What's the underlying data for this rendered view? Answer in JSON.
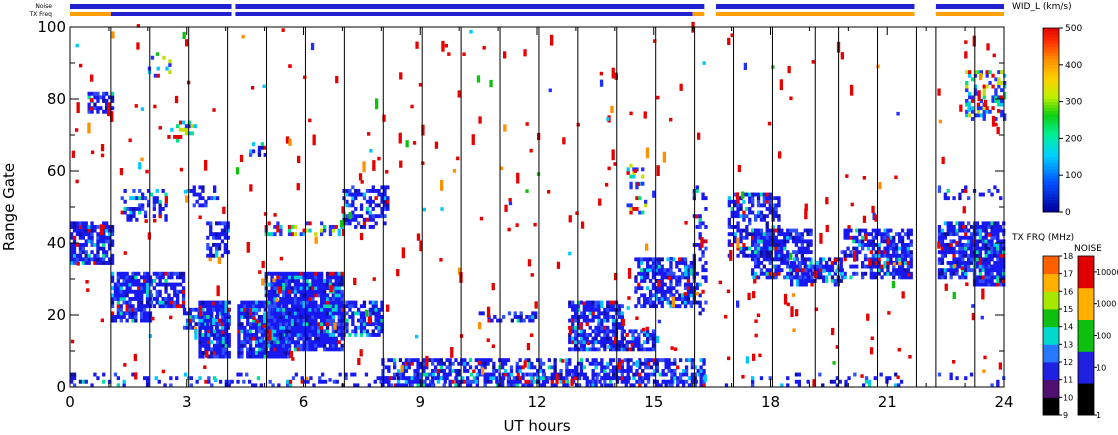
{
  "header": {
    "noise_label": "Noise",
    "txfreq_label": "TX Freq"
  },
  "chart_data": {
    "type": "heatmap",
    "xlabel": "UT hours",
    "ylabel": "Range Gate",
    "xlim": [
      0,
      24
    ],
    "ylim": [
      0,
      100
    ],
    "x_ticks": [
      "0",
      "3",
      "6",
      "9",
      "12",
      "15",
      "18",
      "21",
      "24"
    ],
    "y_ticks": [
      "0",
      "20",
      "40",
      "60",
      "80",
      "100"
    ],
    "scan_boundaries_hours": [
      1.05,
      2.05,
      3.05,
      4.05,
      5.05,
      6.05,
      7.05,
      8.05,
      9.05,
      10.05,
      11.05,
      12.05,
      13.05,
      14.05,
      15.05,
      16.05,
      17.05,
      18.05,
      19.15,
      19.75,
      20.75,
      21.75,
      22.25,
      23.25
    ],
    "data_gaps_hours": [
      [
        4.15,
        4.25
      ],
      [
        16.3,
        16.6
      ],
      [
        21.7,
        22.25
      ]
    ],
    "colorbars": [
      {
        "title": "WID_L (km/s)",
        "ticks": [
          "0",
          "100",
          "200",
          "300",
          "400",
          "500"
        ],
        "range": [
          0,
          500
        ]
      },
      {
        "title": "TX FRQ (MHz)",
        "ticks": [
          "9",
          "10",
          "11",
          "12",
          "13",
          "14",
          "15",
          "16",
          "17",
          "18"
        ],
        "range": [
          9,
          18
        ]
      },
      {
        "title": "NOISE",
        "ticks": [
          "1",
          "10",
          "100",
          "1000",
          "10000"
        ],
        "scale": "log"
      }
    ],
    "top_bars": {
      "noise_color": "#2020d0",
      "txfreq_colors": [
        "#ffa000",
        "#2020d0"
      ],
      "noise_segments_hours": [
        [
          0,
          4.15
        ],
        [
          4.25,
          16.3
        ],
        [
          16.6,
          21.7
        ],
        [
          22.25,
          24
        ]
      ],
      "txfreq_segments": [
        {
          "range": [
            0,
            1.05
          ],
          "color": "#ffa000"
        },
        {
          "range": [
            1.05,
            4.15
          ],
          "color": "#2020d0"
        },
        {
          "range": [
            4.25,
            16.0
          ],
          "color": "#2020d0"
        },
        {
          "range": [
            16.0,
            16.3
          ],
          "color": "#ffa000"
        },
        {
          "range": [
            16.6,
            21.7
          ],
          "color": "#ffa000"
        },
        {
          "range": [
            22.25,
            24
          ],
          "color": "#ffa000"
        }
      ]
    },
    "regions": [
      {
        "x": [
          0.0,
          1.05
        ],
        "y": [
          34,
          46
        ],
        "density": 0.75,
        "palette": "blue"
      },
      {
        "x": [
          0.45,
          1.05
        ],
        "y": [
          76,
          82
        ],
        "density": 0.6,
        "palette": "blue"
      },
      {
        "x": [
          1.05,
          2.05
        ],
        "y": [
          18,
          32
        ],
        "density": 0.8,
        "palette": "blue"
      },
      {
        "x": [
          2.05,
          2.9
        ],
        "y": [
          22,
          32
        ],
        "density": 0.7,
        "palette": "blue"
      },
      {
        "x": [
          1.3,
          2.5
        ],
        "y": [
          46,
          55
        ],
        "density": 0.35,
        "palette": "blue"
      },
      {
        "x": [
          2.0,
          2.6
        ],
        "y": [
          86,
          92
        ],
        "density": 0.3,
        "palette": "mixed"
      },
      {
        "x": [
          2.5,
          3.3
        ],
        "y": [
          68,
          74
        ],
        "density": 0.35,
        "palette": "mixed"
      },
      {
        "x": [
          3.3,
          4.1
        ],
        "y": [
          8,
          24
        ],
        "density": 0.85,
        "palette": "blue"
      },
      {
        "x": [
          2.9,
          4.1
        ],
        "y": [
          16,
          22
        ],
        "density": 0.75,
        "palette": "blue"
      },
      {
        "x": [
          3.5,
          4.1
        ],
        "y": [
          36,
          46
        ],
        "density": 0.55,
        "palette": "blue"
      },
      {
        "x": [
          3.0,
          3.8
        ],
        "y": [
          50,
          56
        ],
        "density": 0.4,
        "palette": "blue"
      },
      {
        "x": [
          4.3,
          5.6
        ],
        "y": [
          8,
          24
        ],
        "density": 0.9,
        "palette": "blue"
      },
      {
        "x": [
          5.0,
          7.0
        ],
        "y": [
          10,
          32
        ],
        "density": 0.9,
        "palette": "blue"
      },
      {
        "x": [
          7.0,
          8.0
        ],
        "y": [
          14,
          24
        ],
        "density": 0.7,
        "palette": "blue"
      },
      {
        "x": [
          5.0,
          7.0
        ],
        "y": [
          42,
          46
        ],
        "density": 0.4,
        "palette": "mixed"
      },
      {
        "x": [
          7.0,
          8.2
        ],
        "y": [
          44,
          56
        ],
        "density": 0.45,
        "palette": "blue"
      },
      {
        "x": [
          4.6,
          5.0
        ],
        "y": [
          64,
          68
        ],
        "density": 0.4,
        "palette": "blue"
      },
      {
        "x": [
          10.5,
          12.0
        ],
        "y": [
          18,
          21
        ],
        "density": 0.5,
        "palette": "blue"
      },
      {
        "x": [
          12.8,
          14.2
        ],
        "y": [
          10,
          24
        ],
        "density": 0.75,
        "palette": "blue"
      },
      {
        "x": [
          14.2,
          15.0
        ],
        "y": [
          10,
          16
        ],
        "density": 0.55,
        "palette": "blue"
      },
      {
        "x": [
          14.5,
          16.0
        ],
        "y": [
          22,
          36
        ],
        "density": 0.7,
        "palette": "blue"
      },
      {
        "x": [
          14.3,
          14.8
        ],
        "y": [
          48,
          62
        ],
        "density": 0.3,
        "palette": "mixed"
      },
      {
        "x": [
          16.0,
          16.3
        ],
        "y": [
          20,
          56
        ],
        "density": 0.3,
        "palette": "blue"
      },
      {
        "x": [
          16.9,
          18.2
        ],
        "y": [
          36,
          54
        ],
        "density": 0.6,
        "palette": "blue"
      },
      {
        "x": [
          17.5,
          19.0
        ],
        "y": [
          30,
          44
        ],
        "density": 0.65,
        "palette": "blue"
      },
      {
        "x": [
          18.5,
          19.8
        ],
        "y": [
          28,
          36
        ],
        "density": 0.6,
        "palette": "blue"
      },
      {
        "x": [
          19.8,
          20.6
        ],
        "y": [
          30,
          44
        ],
        "density": 0.55,
        "palette": "blue"
      },
      {
        "x": [
          20.6,
          21.6
        ],
        "y": [
          30,
          44
        ],
        "density": 0.75,
        "palette": "blue"
      },
      {
        "x": [
          22.0,
          23.2
        ],
        "y": [
          30,
          46
        ],
        "density": 0.75,
        "palette": "blue"
      },
      {
        "x": [
          23.2,
          24.0
        ],
        "y": [
          28,
          46
        ],
        "density": 0.85,
        "palette": "blue"
      },
      {
        "x": [
          22.3,
          24.0
        ],
        "y": [
          52,
          56
        ],
        "density": 0.3,
        "palette": "blue"
      },
      {
        "x": [
          23.0,
          24.0
        ],
        "y": [
          74,
          88
        ],
        "density": 0.4,
        "palette": "mixed"
      },
      {
        "x": [
          0.0,
          16.3
        ],
        "y": [
          0,
          4
        ],
        "density": 0.25,
        "palette": "blue"
      },
      {
        "x": [
          8.0,
          16.3
        ],
        "y": [
          0,
          8
        ],
        "density": 0.55,
        "palette": "blue"
      },
      {
        "x": [
          16.6,
          24.0
        ],
        "y": [
          0,
          4
        ],
        "density": 0.15,
        "palette": "blue"
      }
    ],
    "background_scatter": {
      "count": 420,
      "palette": "red",
      "x": [
        0,
        24
      ],
      "y": [
        0,
        100
      ]
    }
  }
}
